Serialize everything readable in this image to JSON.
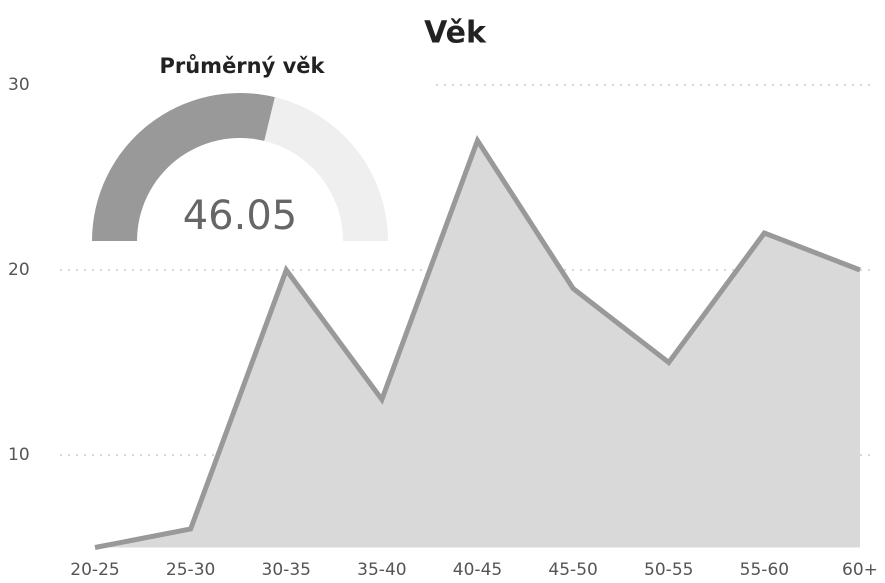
{
  "chart_data": {
    "type": "area",
    "title": "Věk",
    "categories": [
      "20-25",
      "25-30",
      "30-35",
      "35-40",
      "40-45",
      "45-50",
      "50-55",
      "55-60",
      "60+"
    ],
    "values": [
      5,
      6,
      20,
      13,
      27,
      19,
      15,
      22,
      20
    ],
    "color": "#999999",
    "fill": "#d9d9d9",
    "ylim": [
      5,
      30
    ],
    "yticks": [
      10,
      20,
      30
    ],
    "grid": true
  },
  "gauge": {
    "title": "Průměrný věk",
    "value": 46.05,
    "range": [
      0,
      80
    ],
    "color": "#999999",
    "track": "#efefef"
  }
}
